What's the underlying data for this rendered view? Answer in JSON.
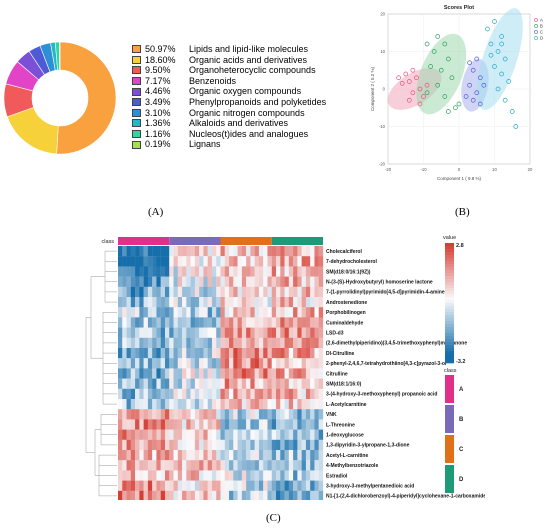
{
  "panel_labels": {
    "a": "(A)",
    "b": "(B)",
    "c": "(C)"
  },
  "chart_data": [
    {
      "type": "pie",
      "subtype": "donut",
      "title": "",
      "slices": [
        {
          "pct": 50.97,
          "pct_label": "50.97%",
          "name": "Lipids and lipid-like molecules",
          "color": "#f9a03f"
        },
        {
          "pct": 18.6,
          "pct_label": "18.60%",
          "name": "Organic acids and derivatives",
          "color": "#f6d13a"
        },
        {
          "pct": 9.5,
          "pct_label": "9.50%",
          "name": "Organoheterocyclic compounds",
          "color": "#f05a5a"
        },
        {
          "pct": 7.17,
          "pct_label": "7.17%",
          "name": "Benzenoids",
          "color": "#e244c8"
        },
        {
          "pct": 4.46,
          "pct_label": "4.46%",
          "name": "Organic oxygen compounds",
          "color": "#7b4fd6"
        },
        {
          "pct": 3.49,
          "pct_label": "3.49%",
          "name": "Phenylpropanoids and polyketides",
          "color": "#4f5bd6"
        },
        {
          "pct": 3.1,
          "pct_label": "3.10%",
          "name": "Organic nitrogen compounds",
          "color": "#2f8fd6"
        },
        {
          "pct": 1.36,
          "pct_label": "1.36%",
          "name": "Alkaloids and derivatives",
          "color": "#22b8c8"
        },
        {
          "pct": 1.16,
          "pct_label": "1.16%",
          "name": "Nucleos(t)ides and analogues",
          "color": "#2fd6a0"
        },
        {
          "pct": 0.19,
          "pct_label": "0.19%",
          "name": "Lignans",
          "color": "#a6e04a"
        }
      ]
    },
    {
      "type": "scatter",
      "title": "Scores Plot",
      "xlabel": "Component 1 ( 9.8 %)",
      "ylabel": "Component 2 ( 5.2 %)",
      "xlim": [
        -20,
        20
      ],
      "ylim": [
        -20,
        20
      ],
      "xticks": [
        -20,
        -10,
        0,
        10,
        20
      ],
      "yticks": [
        -20,
        -10,
        0,
        10,
        20
      ],
      "legend_position": "top-right",
      "series": [
        {
          "name": "A",
          "color": "#e8507a",
          "fill": "#f4a6bd",
          "ellipse": {
            "cx": -12.5,
            "cy": 0,
            "rx": 8.5,
            "ry": 4.2,
            "angle": -32
          },
          "points": [
            [
              -17,
              3
            ],
            [
              -16,
              1.5
            ],
            [
              -15,
              4
            ],
            [
              -14,
              2
            ],
            [
              -13,
              5
            ],
            [
              -13,
              -1
            ],
            [
              -12,
              3
            ],
            [
              -11,
              0
            ],
            [
              -10,
              -2
            ],
            [
              -9,
              1
            ],
            [
              -11,
              -4
            ],
            [
              -14,
              -3
            ]
          ]
        },
        {
          "name": "B",
          "color": "#2e9f5a",
          "fill": "#9fd8b0",
          "ellipse": {
            "cx": -5,
            "cy": 4,
            "rx": 12,
            "ry": 5.5,
            "angle": -68
          },
          "points": [
            [
              -9,
              12
            ],
            [
              -6,
              14
            ],
            [
              -7,
              10
            ],
            [
              -4,
              12
            ],
            [
              -8,
              6
            ],
            [
              -5,
              5
            ],
            [
              -3,
              8
            ],
            [
              -6,
              1
            ],
            [
              -4,
              -2
            ],
            [
              -2,
              3
            ],
            [
              -1,
              -5
            ],
            [
              -3,
              -6
            ],
            [
              0,
              -4
            ],
            [
              -9,
              -1
            ]
          ]
        },
        {
          "name": "C",
          "color": "#4f5bd6",
          "fill": "#a9b3ee",
          "ellipse": {
            "cx": 4.5,
            "cy": 1,
            "rx": 7.5,
            "ry": 3.5,
            "angle": -80
          },
          "points": [
            [
              3,
              7
            ],
            [
              5,
              8
            ],
            [
              4,
              5
            ],
            [
              6,
              3
            ],
            [
              3,
              1
            ],
            [
              5,
              -1
            ],
            [
              6,
              -4
            ],
            [
              4,
              -3
            ],
            [
              7,
              1
            ],
            [
              2,
              -2
            ]
          ]
        },
        {
          "name": "D",
          "color": "#22a8c8",
          "fill": "#a6dff0",
          "ellipse": {
            "cx": 11.5,
            "cy": 8,
            "rx": 15,
            "ry": 4.5,
            "angle": -72
          },
          "points": [
            [
              8,
              16
            ],
            [
              10,
              18
            ],
            [
              12,
              14
            ],
            [
              9,
              12
            ],
            [
              11,
              10
            ],
            [
              13,
              8
            ],
            [
              10,
              6
            ],
            [
              12,
              4
            ],
            [
              14,
              2
            ],
            [
              11,
              0
            ],
            [
              13,
              -3
            ],
            [
              15,
              -6
            ],
            [
              16,
              -10
            ],
            [
              9,
              9
            ],
            [
              12,
              12
            ]
          ]
        }
      ]
    },
    {
      "type": "heatmap",
      "title": "",
      "class_label": "class",
      "colorbar": {
        "label": "value",
        "max_label": "2.8",
        "min_label": "-3.2",
        "min": -3.2,
        "max": 2.8
      },
      "class_legend": {
        "title": "class",
        "entries": [
          {
            "name": "A",
            "color": "#e0308a"
          },
          {
            "name": "B",
            "color": "#7a6ab8"
          },
          {
            "name": "C",
            "color": "#e0701a"
          },
          {
            "name": "D",
            "color": "#1e9a78"
          }
        ]
      },
      "class_counts": [
        12,
        12,
        12,
        12
      ],
      "rows": [
        {
          "label": "Cholecalciferol",
          "profile": [
            -1.6,
            0.3,
            0.5,
            0.6
          ]
        },
        {
          "label": "7-dehydrocholesterol",
          "profile": [
            -1.8,
            0.2,
            0.6,
            0.7
          ]
        },
        {
          "label": "SM(d18:0/16:1(9Z))",
          "profile": [
            -1.5,
            0.0,
            0.5,
            0.6
          ]
        },
        {
          "label": "N-(3-(S)-Hydroxybutyryl) homoserine lactone",
          "profile": [
            -1.2,
            -0.1,
            0.4,
            0.5
          ]
        },
        {
          "label": "7-(1-pyrrolidinyl)pyrimido[4,5-d]pyrimidin-4-amine",
          "profile": [
            -1.0,
            -0.3,
            0.3,
            0.5
          ]
        },
        {
          "label": "Androstenedione",
          "profile": [
            -0.8,
            -0.4,
            0.2,
            0.4
          ]
        },
        {
          "label": "Porphobilinogen",
          "profile": [
            -0.5,
            -0.6,
            0.5,
            0.6
          ]
        },
        {
          "label": "Cuminaldehyde",
          "profile": [
            -0.6,
            -0.7,
            0.7,
            0.8
          ]
        },
        {
          "label": "LSD-d3",
          "profile": [
            -0.7,
            -0.6,
            0.8,
            0.9
          ]
        },
        {
          "label": "(2,6-dimethylpiperidino)(3,4,5-trimethoxyphenyl)methanone",
          "profile": [
            -0.7,
            -0.5,
            0.8,
            0.8
          ]
        },
        {
          "label": "Dl-Citrulline",
          "profile": [
            -0.8,
            -0.4,
            0.9,
            0.7
          ]
        },
        {
          "label": "2-phenyl-2,4,6,7-tetrahydrothiino[4,3-c]pyrazol-3-ol",
          "profile": [
            -0.8,
            -0.3,
            0.9,
            0.6
          ]
        },
        {
          "label": "Citrulline",
          "profile": [
            -0.9,
            -0.2,
            0.9,
            0.6
          ]
        },
        {
          "label": "SM(d18:1/16:0)",
          "profile": [
            -0.8,
            -0.2,
            0.7,
            0.5
          ]
        },
        {
          "label": "3-(4-hydroxy-3-methoxyphenyl) propanoic acid",
          "profile": [
            -0.7,
            -0.2,
            0.6,
            0.5
          ]
        },
        {
          "label": "L-Acetylcarnitine",
          "profile": [
            -0.6,
            -0.1,
            0.5,
            0.4
          ]
        },
        {
          "label": "VNK",
          "profile": [
            0.8,
            0.3,
            -0.4,
            -0.7
          ]
        },
        {
          "label": "L-Threonine",
          "profile": [
            0.9,
            0.4,
            -0.5,
            -0.8
          ]
        },
        {
          "label": "1-deoxyglucose",
          "profile": [
            0.8,
            0.3,
            -0.3,
            -0.7
          ]
        },
        {
          "label": "1,3-dipyridin-3-ylpropane-1,3-dione",
          "profile": [
            0.7,
            0.2,
            -0.2,
            -0.8
          ]
        },
        {
          "label": "Acetyl-L-carnitine",
          "profile": [
            0.6,
            0.3,
            -0.3,
            -0.6
          ]
        },
        {
          "label": "4-Methylbenzotriazole",
          "profile": [
            0.7,
            0.4,
            -0.4,
            -0.7
          ]
        },
        {
          "label": "Estradiol",
          "profile": [
            0.6,
            0.3,
            -0.2,
            -0.6
          ]
        },
        {
          "label": "3-hydroxy-3-methylpentanedioic acid",
          "profile": [
            0.9,
            0.2,
            -0.4,
            -0.8
          ]
        },
        {
          "label": "N1-[1-(2,4-dichlorobenzoyl)-4-piperidyl]cyclohexane-1-carboxamide",
          "profile": [
            1.1,
            0.3,
            -0.6,
            -0.9
          ]
        }
      ]
    }
  ]
}
